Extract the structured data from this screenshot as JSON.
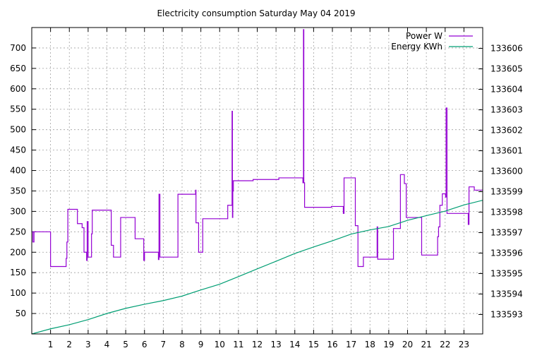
{
  "chart_data": {
    "type": "line",
    "title": "Electricity consumption Saturday May 04 2019",
    "x": {
      "ticks": [
        1,
        2,
        3,
        4,
        5,
        6,
        7,
        8,
        9,
        10,
        11,
        12,
        13,
        14,
        15,
        16,
        17,
        18,
        19,
        20,
        21,
        22,
        23
      ],
      "range": [
        0,
        24
      ],
      "grid": true
    },
    "y_left": {
      "ticks": [
        50,
        100,
        150,
        200,
        250,
        300,
        350,
        400,
        450,
        500,
        550,
        600,
        650,
        700
      ],
      "range": [
        0,
        750
      ],
      "grid": true
    },
    "y_right": {
      "ticks": [
        133593,
        133594,
        133595,
        133596,
        133597,
        133598,
        133599,
        133600,
        133601,
        133602,
        133603,
        133604,
        133605,
        133606
      ],
      "range": [
        133592.05,
        133607.02
      ]
    },
    "legend_position": "top-right",
    "series": [
      {
        "name": "Power W",
        "axis": "left",
        "color": "#9400d3",
        "style": "step",
        "points": [
          [
            0.0,
            250
          ],
          [
            0.06,
            225
          ],
          [
            0.12,
            250
          ],
          [
            0.97,
            250
          ],
          [
            1.0,
            165
          ],
          [
            1.8,
            165
          ],
          [
            1.83,
            185
          ],
          [
            1.87,
            225
          ],
          [
            1.92,
            305
          ],
          [
            2.4,
            305
          ],
          [
            2.43,
            270
          ],
          [
            2.65,
            270
          ],
          [
            2.68,
            260
          ],
          [
            2.75,
            260
          ],
          [
            2.78,
            200
          ],
          [
            2.9,
            200
          ],
          [
            2.92,
            180
          ],
          [
            2.95,
            275
          ],
          [
            3.0,
            188
          ],
          [
            3.15,
            188
          ],
          [
            3.18,
            245
          ],
          [
            3.22,
            303
          ],
          [
            4.2,
            303
          ],
          [
            4.23,
            217
          ],
          [
            4.3,
            217
          ],
          [
            4.35,
            188
          ],
          [
            4.7,
            188
          ],
          [
            4.73,
            285
          ],
          [
            5.45,
            285
          ],
          [
            5.5,
            233
          ],
          [
            5.92,
            233
          ],
          [
            5.96,
            180
          ],
          [
            6.0,
            200
          ],
          [
            6.7,
            200
          ],
          [
            6.74,
            182
          ],
          [
            6.77,
            342
          ],
          [
            6.82,
            188
          ],
          [
            7.75,
            188
          ],
          [
            7.78,
            342
          ],
          [
            8.7,
            342
          ],
          [
            8.72,
            352
          ],
          [
            8.74,
            272
          ],
          [
            8.85,
            272
          ],
          [
            8.88,
            200
          ],
          [
            9.08,
            200
          ],
          [
            9.1,
            282
          ],
          [
            10.4,
            282
          ],
          [
            10.43,
            315
          ],
          [
            10.63,
            315
          ],
          [
            10.66,
            545
          ],
          [
            10.68,
            285
          ],
          [
            10.7,
            350
          ],
          [
            10.73,
            375
          ],
          [
            11.75,
            375
          ],
          [
            11.78,
            378
          ],
          [
            13.1,
            378
          ],
          [
            13.15,
            382
          ],
          [
            14.4,
            382
          ],
          [
            14.43,
            370
          ],
          [
            14.46,
            745
          ],
          [
            14.48,
            370
          ],
          [
            14.52,
            310
          ],
          [
            15.9,
            310
          ],
          [
            15.95,
            312
          ],
          [
            16.55,
            312
          ],
          [
            16.58,
            295
          ],
          [
            16.62,
            382
          ],
          [
            17.18,
            382
          ],
          [
            17.22,
            265
          ],
          [
            17.32,
            265
          ],
          [
            17.36,
            165
          ],
          [
            17.6,
            165
          ],
          [
            17.65,
            188
          ],
          [
            18.35,
            188
          ],
          [
            18.38,
            262
          ],
          [
            18.41,
            183
          ],
          [
            19.2,
            183
          ],
          [
            19.25,
            258
          ],
          [
            19.6,
            258
          ],
          [
            19.62,
            390
          ],
          [
            19.8,
            390
          ],
          [
            19.83,
            368
          ],
          [
            19.9,
            368
          ],
          [
            19.93,
            285
          ],
          [
            20.7,
            285
          ],
          [
            20.75,
            193
          ],
          [
            21.55,
            193
          ],
          [
            21.6,
            238
          ],
          [
            21.65,
            262
          ],
          [
            21.72,
            315
          ],
          [
            21.85,
            343
          ],
          [
            22.0,
            343
          ],
          [
            22.02,
            335
          ],
          [
            22.05,
            553
          ],
          [
            22.1,
            295
          ],
          [
            23.2,
            295
          ],
          [
            23.23,
            268
          ],
          [
            23.27,
            360
          ],
          [
            23.5,
            360
          ],
          [
            23.55,
            352
          ],
          [
            24.0,
            352
          ]
        ]
      },
      {
        "name": "Energy KWh",
        "axis": "right",
        "color": "#009e73",
        "style": "line",
        "points": [
          [
            0.0,
            133592.05
          ],
          [
            1.0,
            133592.3
          ],
          [
            2.0,
            133592.5
          ],
          [
            3.0,
            133592.75
          ],
          [
            4.0,
            133593.05
          ],
          [
            5.0,
            133593.3
          ],
          [
            6.0,
            133593.5
          ],
          [
            7.0,
            133593.68
          ],
          [
            8.0,
            133593.9
          ],
          [
            9.0,
            133594.2
          ],
          [
            10.0,
            133594.48
          ],
          [
            11.0,
            133594.85
          ],
          [
            12.0,
            133595.23
          ],
          [
            13.0,
            133595.6
          ],
          [
            14.0,
            133595.98
          ],
          [
            15.0,
            133596.3
          ],
          [
            16.0,
            133596.6
          ],
          [
            17.0,
            133596.93
          ],
          [
            18.0,
            133597.13
          ],
          [
            19.0,
            133597.3
          ],
          [
            20.0,
            133597.6
          ],
          [
            21.0,
            133597.83
          ],
          [
            22.0,
            133598.05
          ],
          [
            23.0,
            133598.35
          ],
          [
            24.0,
            133598.58
          ]
        ]
      }
    ]
  }
}
